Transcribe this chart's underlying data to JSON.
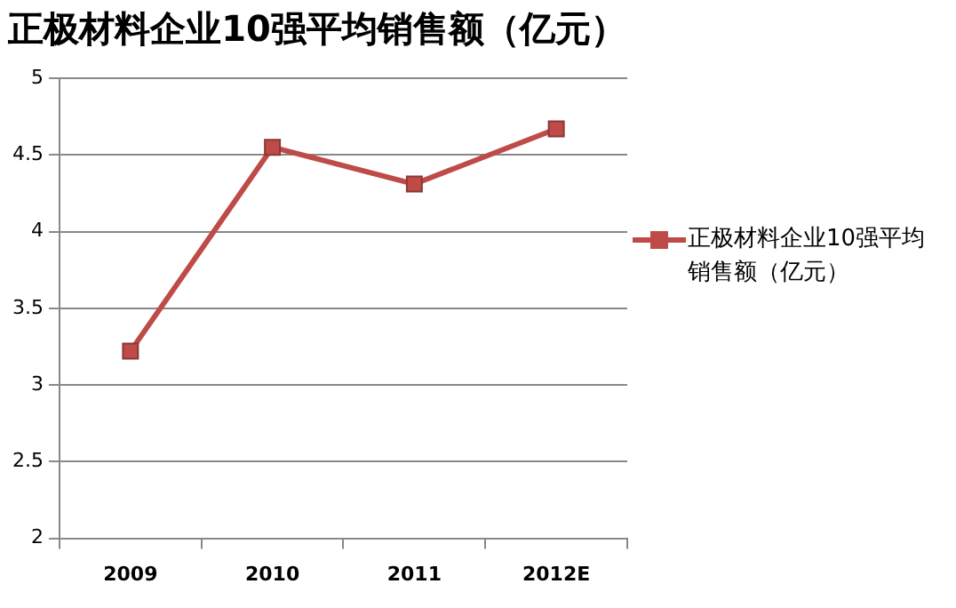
{
  "chart_data": {
    "type": "line",
    "title": "正极材料企业10强平均销售额（亿元）",
    "categories": [
      "2009",
      "2010",
      "2011",
      "2012E"
    ],
    "series": [
      {
        "name": "正极材料企业10强平均销售额（亿元）",
        "color": "#be4b48",
        "values": [
          3.22,
          4.55,
          4.31,
          4.67
        ]
      }
    ],
    "ylim": [
      2,
      5
    ],
    "yticks": [
      2,
      2.5,
      3,
      3.5,
      4,
      4.5,
      5
    ],
    "grid": "y",
    "legend": "right",
    "marker": "square",
    "line_style": "solid"
  }
}
